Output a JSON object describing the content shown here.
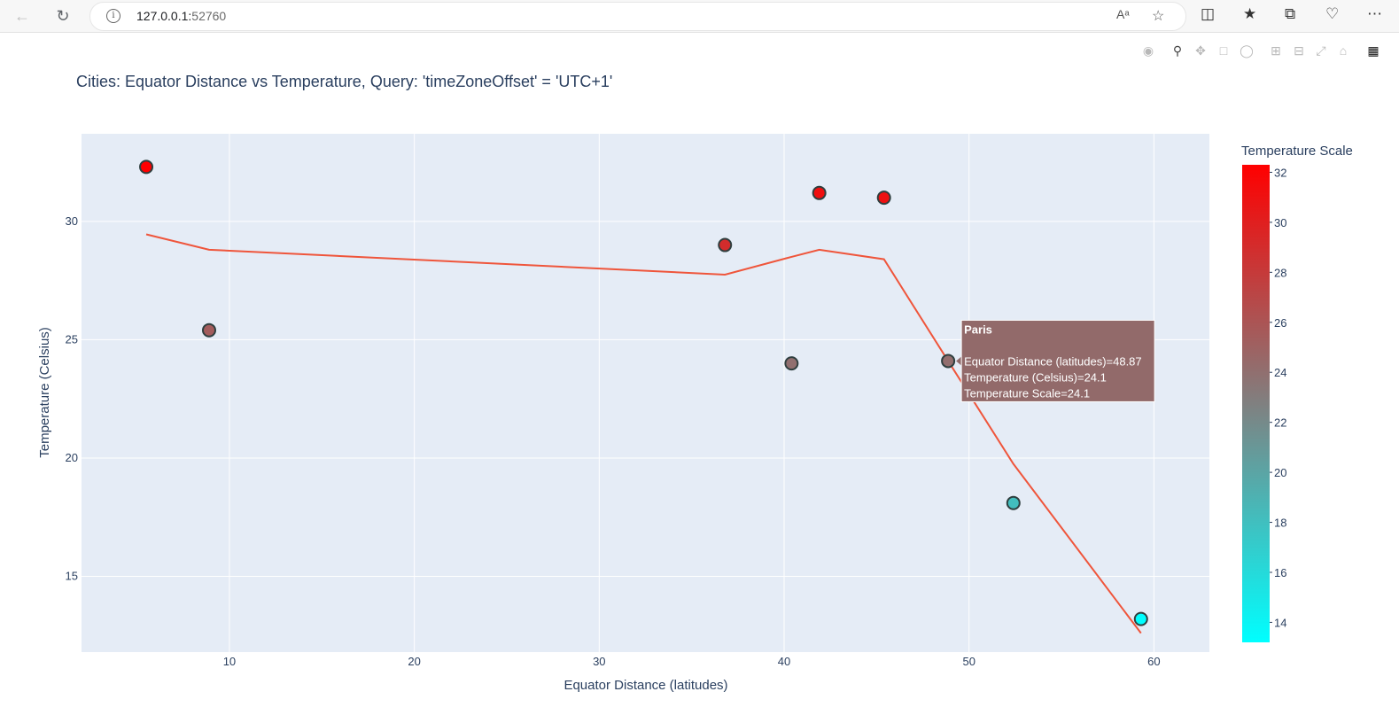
{
  "browser": {
    "url_host": "127.0.0.1:",
    "url_port": "52760",
    "reader_icon": "Aᵃ"
  },
  "chart_data": {
    "type": "scatter",
    "title": "Cities: Equator Distance vs Temperature, Query: 'timeZoneOffset' = 'UTC+1'",
    "xlabel": "Equator Distance (latitudes)",
    "ylabel": "Temperature (Celsius)",
    "xlim": [
      2,
      63
    ],
    "ylim": [
      11.8,
      33.7
    ],
    "xticks": [
      10,
      20,
      30,
      40,
      50,
      60
    ],
    "yticks": [
      15,
      20,
      25,
      30
    ],
    "grid": true,
    "series": [
      {
        "type": "scatter",
        "x": [
          5.5,
          8.9,
          36.8,
          40.4,
          41.9,
          45.4,
          48.87,
          52.4,
          59.3
        ],
        "y": [
          32.3,
          25.4,
          29.0,
          24.0,
          31.2,
          31.0,
          24.1,
          18.1,
          13.2
        ]
      },
      {
        "type": "line",
        "color": "#EF553B",
        "x": [
          5.5,
          8.9,
          36.8,
          40.4,
          41.9,
          45.4,
          48.87,
          52.4,
          59.3
        ],
        "y": [
          29.45,
          28.8,
          27.75,
          28.5,
          28.8,
          28.4,
          24.1,
          19.75,
          12.6
        ]
      }
    ],
    "colorbar": {
      "title": "Temperature Scale",
      "min": 13.2,
      "max": 32.3,
      "ticks": [
        14,
        16,
        18,
        20,
        22,
        24,
        26,
        28,
        30,
        32
      ],
      "colors": [
        "#00ffff",
        "#808080",
        "#ff0000"
      ]
    },
    "hover": {
      "name": "Paris",
      "line1": "Equator Distance (latitudes)=48.87",
      "line2": "Temperature (Celsius)=24.1",
      "line3": "Temperature Scale=24.1",
      "x": 48.87,
      "y": 24.1
    }
  }
}
